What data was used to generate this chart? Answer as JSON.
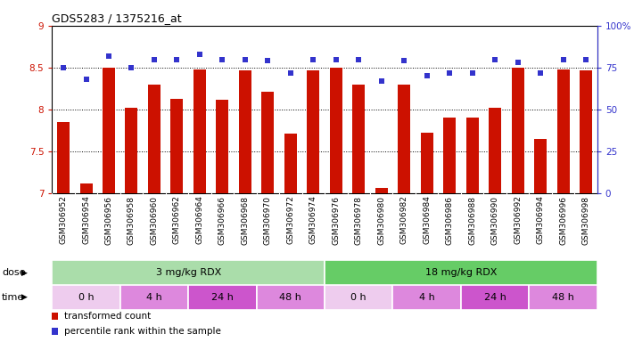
{
  "title": "GDS5283 / 1375216_at",
  "samples": [
    "GSM306952",
    "GSM306954",
    "GSM306956",
    "GSM306958",
    "GSM306960",
    "GSM306962",
    "GSM306964",
    "GSM306966",
    "GSM306968",
    "GSM306970",
    "GSM306972",
    "GSM306974",
    "GSM306976",
    "GSM306978",
    "GSM306980",
    "GSM306982",
    "GSM306984",
    "GSM306986",
    "GSM306988",
    "GSM306990",
    "GSM306992",
    "GSM306994",
    "GSM306996",
    "GSM306998"
  ],
  "bar_values": [
    7.85,
    7.12,
    8.5,
    8.02,
    8.3,
    8.13,
    8.48,
    8.12,
    8.47,
    8.21,
    7.71,
    8.47,
    8.5,
    8.3,
    7.07,
    8.3,
    7.72,
    7.9,
    7.9,
    8.02,
    8.5,
    7.65,
    8.48,
    8.47
  ],
  "percentile_values": [
    75,
    68,
    82,
    75,
    80,
    80,
    83,
    80,
    80,
    79,
    72,
    80,
    80,
    80,
    67,
    79,
    70,
    72,
    72,
    80,
    78,
    72,
    80,
    80
  ],
  "bar_color": "#cc1100",
  "dot_color": "#3333cc",
  "ylim_left": [
    7.0,
    9.0
  ],
  "ylim_right": [
    0,
    100
  ],
  "yticks_left": [
    7.0,
    7.5,
    8.0,
    8.5,
    9.0
  ],
  "yticks_right": [
    0,
    25,
    50,
    75,
    100
  ],
  "ytick_labels_right": [
    "0",
    "25",
    "50",
    "75",
    "100%"
  ],
  "dose_groups": [
    {
      "label": "3 mg/kg RDX",
      "start": 0,
      "end": 12,
      "color": "#aaddaa"
    },
    {
      "label": "18 mg/kg RDX",
      "start": 12,
      "end": 24,
      "color": "#66cc66"
    }
  ],
  "time_groups": [
    {
      "label": "0 h",
      "start": 0,
      "end": 3,
      "color": "#eeccee"
    },
    {
      "label": "4 h",
      "start": 3,
      "end": 6,
      "color": "#dd88dd"
    },
    {
      "label": "24 h",
      "start": 6,
      "end": 9,
      "color": "#cc55cc"
    },
    {
      "label": "48 h",
      "start": 9,
      "end": 12,
      "color": "#dd88dd"
    },
    {
      "label": "0 h",
      "start": 12,
      "end": 15,
      "color": "#eeccee"
    },
    {
      "label": "4 h",
      "start": 15,
      "end": 18,
      "color": "#dd88dd"
    },
    {
      "label": "24 h",
      "start": 18,
      "end": 21,
      "color": "#cc55cc"
    },
    {
      "label": "48 h",
      "start": 21,
      "end": 24,
      "color": "#dd88dd"
    }
  ],
  "legend_items": [
    {
      "label": "transformed count",
      "color": "#cc1100"
    },
    {
      "label": "percentile rank within the sample",
      "color": "#3333cc"
    }
  ],
  "xlabel_bg": "#cccccc",
  "plot_bg": "#ffffff",
  "fig_bg": "#ffffff",
  "title_fontsize": 9,
  "axis_fontsize": 7.5,
  "bar_label_fontsize": 6.5,
  "dose_time_fontsize": 8
}
